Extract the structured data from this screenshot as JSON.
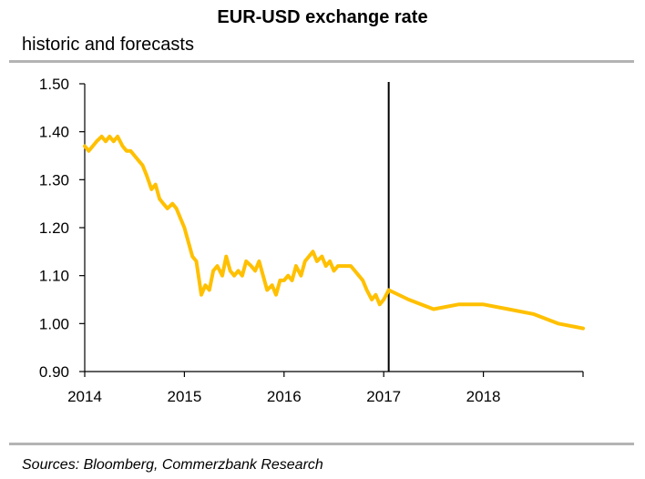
{
  "header": {
    "title": "EUR-USD exchange rate",
    "subtitle": "historic and forecasts"
  },
  "footer": {
    "source": "Sources: Bloomberg, Commerzbank Research"
  },
  "colors": {
    "series": "#FFC000",
    "axis": "#000000",
    "rule": "#B4B4B4"
  },
  "chart_data": {
    "type": "line",
    "title": "EUR-USD exchange rate",
    "subtitle": "historic and forecasts",
    "xlabel": "",
    "ylabel": "",
    "xlim": [
      2014,
      2019
    ],
    "ylim": [
      0.9,
      1.5
    ],
    "yticks": [
      "0.90",
      "1.00",
      "1.10",
      "1.20",
      "1.30",
      "1.40",
      "1.50"
    ],
    "xticks": [
      "2014",
      "2015",
      "2016",
      "2017",
      "2018"
    ],
    "grid": false,
    "legend": "none",
    "vertical_marker_x": 2017.05,
    "series": [
      {
        "x": [
          2014.0,
          2014.04,
          2014.08,
          2014.12,
          2014.17,
          2014.21,
          2014.25,
          2014.29,
          2014.33,
          2014.38,
          2014.42,
          2014.46,
          2014.5,
          2014.54,
          2014.58,
          2014.62,
          2014.67,
          2014.71,
          2014.75,
          2014.79,
          2014.83,
          2014.88,
          2014.92,
          2014.96,
          2015.0,
          2015.04,
          2015.08,
          2015.12,
          2015.17,
          2015.21,
          2015.25,
          2015.29,
          2015.33,
          2015.38,
          2015.42,
          2015.46,
          2015.5,
          2015.54,
          2015.58,
          2015.62,
          2015.67,
          2015.71,
          2015.75,
          2015.79,
          2015.83,
          2015.88,
          2015.92,
          2015.96,
          2016.0,
          2016.04,
          2016.08,
          2016.12,
          2016.17,
          2016.21,
          2016.25,
          2016.29,
          2016.33,
          2016.38,
          2016.42,
          2016.46,
          2016.5,
          2016.54,
          2016.58,
          2016.62,
          2016.67,
          2016.71,
          2016.75,
          2016.79,
          2016.83,
          2016.88,
          2016.92,
          2016.96,
          2017.0,
          2017.05,
          2017.25,
          2017.5,
          2017.75,
          2018.0,
          2018.25,
          2018.5,
          2018.75,
          2019.0
        ],
        "values": [
          1.37,
          1.36,
          1.37,
          1.38,
          1.39,
          1.38,
          1.39,
          1.38,
          1.39,
          1.37,
          1.36,
          1.36,
          1.35,
          1.34,
          1.33,
          1.31,
          1.28,
          1.29,
          1.26,
          1.25,
          1.24,
          1.25,
          1.24,
          1.22,
          1.2,
          1.17,
          1.14,
          1.13,
          1.06,
          1.08,
          1.07,
          1.11,
          1.12,
          1.1,
          1.14,
          1.11,
          1.1,
          1.11,
          1.1,
          1.13,
          1.12,
          1.11,
          1.13,
          1.1,
          1.07,
          1.08,
          1.06,
          1.09,
          1.09,
          1.1,
          1.09,
          1.12,
          1.1,
          1.13,
          1.14,
          1.15,
          1.13,
          1.14,
          1.12,
          1.13,
          1.11,
          1.12,
          1.12,
          1.12,
          1.12,
          1.11,
          1.1,
          1.09,
          1.07,
          1.05,
          1.06,
          1.04,
          1.05,
          1.07,
          1.05,
          1.03,
          1.04,
          1.04,
          1.03,
          1.02,
          1.0,
          0.99
        ]
      }
    ]
  }
}
